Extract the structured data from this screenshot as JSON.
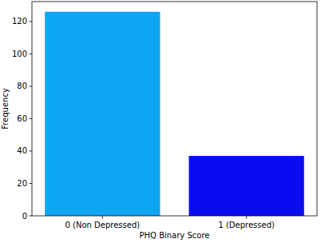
{
  "chart_data": {
    "type": "bar",
    "x_label": "PHQ Binary Score",
    "y_label": "Frequency",
    "categories": [
      "0 (Non Depressed)",
      "1 (Depressed)"
    ],
    "values": [
      126,
      37
    ],
    "colors": [
      "#0ea5f2",
      "#0a0cf0"
    ],
    "ylim": [
      0,
      132.3
    ],
    "yticks": [
      0,
      20,
      40,
      60,
      80,
      100,
      120
    ],
    "grid": false
  }
}
